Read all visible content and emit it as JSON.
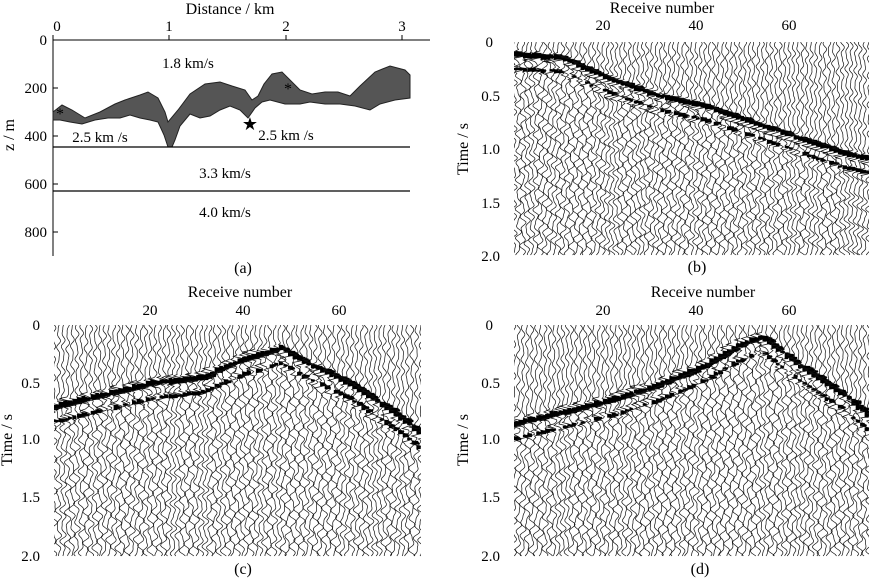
{
  "panel_a": {
    "title": "Distance / km",
    "ylabel": "z / m",
    "x_ticks": [
      "0",
      "1",
      "2",
      "3"
    ],
    "y_ticks": [
      "0",
      "200",
      "400",
      "600",
      "800"
    ],
    "velocities": {
      "v_top": "1.8 km/s",
      "v_left": "2.5 km /s",
      "v_right": "2.5 km /s",
      "v_mid": "3.3 km/s",
      "v_bottom": "4.0 km/s"
    },
    "caption": "(a)"
  },
  "panel_b": {
    "xlabel": "Receive number",
    "ylabel": "Time / s",
    "x_ticks": [
      "20",
      "40",
      "60"
    ],
    "y_ticks": [
      "0",
      "0.5",
      "1.0",
      "1.5",
      "2.0"
    ],
    "caption": "(b)"
  },
  "panel_c": {
    "xlabel": "Receive number",
    "ylabel": "Time / s",
    "x_ticks": [
      "20",
      "40",
      "60"
    ],
    "y_ticks": [
      "0",
      "0.5",
      "1.0",
      "1.5",
      "2.0"
    ],
    "caption": "(c)"
  },
  "panel_d": {
    "xlabel": "Receive number",
    "ylabel": "Time / s",
    "x_ticks": [
      "20",
      "40",
      "60"
    ],
    "y_ticks": [
      "0",
      "0.5",
      "1.0",
      "1.5",
      "2.0"
    ],
    "caption": "(d)"
  },
  "chart_data": [
    {
      "type": "area",
      "panel": "a",
      "title": "Distance / km",
      "xlabel": "Distance / km",
      "ylabel": "z / m",
      "xlim": [
        0,
        3.1
      ],
      "ylim": [
        0,
        900
      ],
      "y_inverted": true,
      "interfaces": [
        {
          "name": "lower anomaly boundary",
          "x": [
            0,
            0.1,
            0.15,
            0.3,
            0.5,
            0.7,
            0.9,
            1.0,
            1.05,
            1.15,
            1.3,
            1.5,
            1.6,
            1.75,
            1.85,
            2.0,
            2.2,
            2.5,
            2.8,
            3.0,
            3.1
          ],
          "z": [
            330,
            340,
            320,
            300,
            330,
            290,
            280,
            380,
            430,
            360,
            310,
            330,
            270,
            320,
            260,
            260,
            240,
            250,
            260,
            230,
            200
          ]
        },
        {
          "name": "upper anomaly boundary",
          "x": [
            0,
            0.1,
            0.2,
            0.4,
            0.6,
            0.8,
            0.9,
            1.0,
            1.3,
            1.5,
            1.6,
            1.8,
            2.0,
            2.2,
            2.4,
            2.6,
            2.8,
            3.0,
            3.1
          ],
          "z": [
            300,
            270,
            300,
            260,
            230,
            220,
            240,
            330,
            180,
            180,
            200,
            270,
            150,
            210,
            210,
            240,
            150,
            110,
            120
          ]
        },
        {
          "name": "interface 3.3 km/s",
          "x": [
            0,
            3.1
          ],
          "z": [
            440,
            440
          ]
        },
        {
          "name": "interface 4.0 km/s",
          "x": [
            0,
            3.1
          ],
          "z": [
            630,
            630
          ]
        }
      ],
      "sources": [
        {
          "x": 0.05,
          "z": 300
        },
        {
          "x": 1.75,
          "z": 340
        },
        {
          "x": 2.05,
          "z": 190
        }
      ],
      "layer_velocities_km_s": [
        1.8,
        2.5,
        2.5,
        3.3,
        4.0
      ]
    },
    {
      "type": "heatmap",
      "panel": "b",
      "description": "shot gather wiggle traces",
      "xlabel": "Receive number",
      "ylabel": "Time / s",
      "xlim": [
        0,
        75
      ],
      "ylim": [
        0,
        2.0
      ],
      "first_break": {
        "receiver": [
          0,
          10,
          20,
          30,
          40,
          50,
          60,
          70,
          75
        ],
        "time_s": [
          0.12,
          0.15,
          0.35,
          0.5,
          0.6,
          0.75,
          0.9,
          1.05,
          1.1
        ]
      }
    },
    {
      "type": "heatmap",
      "panel": "c",
      "description": "shot gather wiggle traces",
      "xlabel": "Receive number",
      "ylabel": "Time / s",
      "xlim": [
        0,
        75
      ],
      "ylim": [
        0,
        2.0
      ],
      "first_break": {
        "receiver": [
          0,
          10,
          20,
          30,
          38,
          46,
          50,
          60,
          70,
          75
        ],
        "time_s": [
          0.7,
          0.6,
          0.5,
          0.45,
          0.3,
          0.2,
          0.3,
          0.5,
          0.78,
          0.95
        ]
      }
    },
    {
      "type": "heatmap",
      "panel": "d",
      "description": "shot gather wiggle traces",
      "xlabel": "Receive number",
      "ylabel": "Time / s",
      "xlim": [
        0,
        75
      ],
      "ylim": [
        0,
        2.0
      ],
      "first_break": {
        "receiver": [
          0,
          10,
          20,
          30,
          40,
          47,
          52,
          60,
          70,
          75
        ],
        "time_s": [
          0.85,
          0.75,
          0.65,
          0.52,
          0.35,
          0.18,
          0.1,
          0.35,
          0.62,
          0.8
        ]
      }
    }
  ]
}
